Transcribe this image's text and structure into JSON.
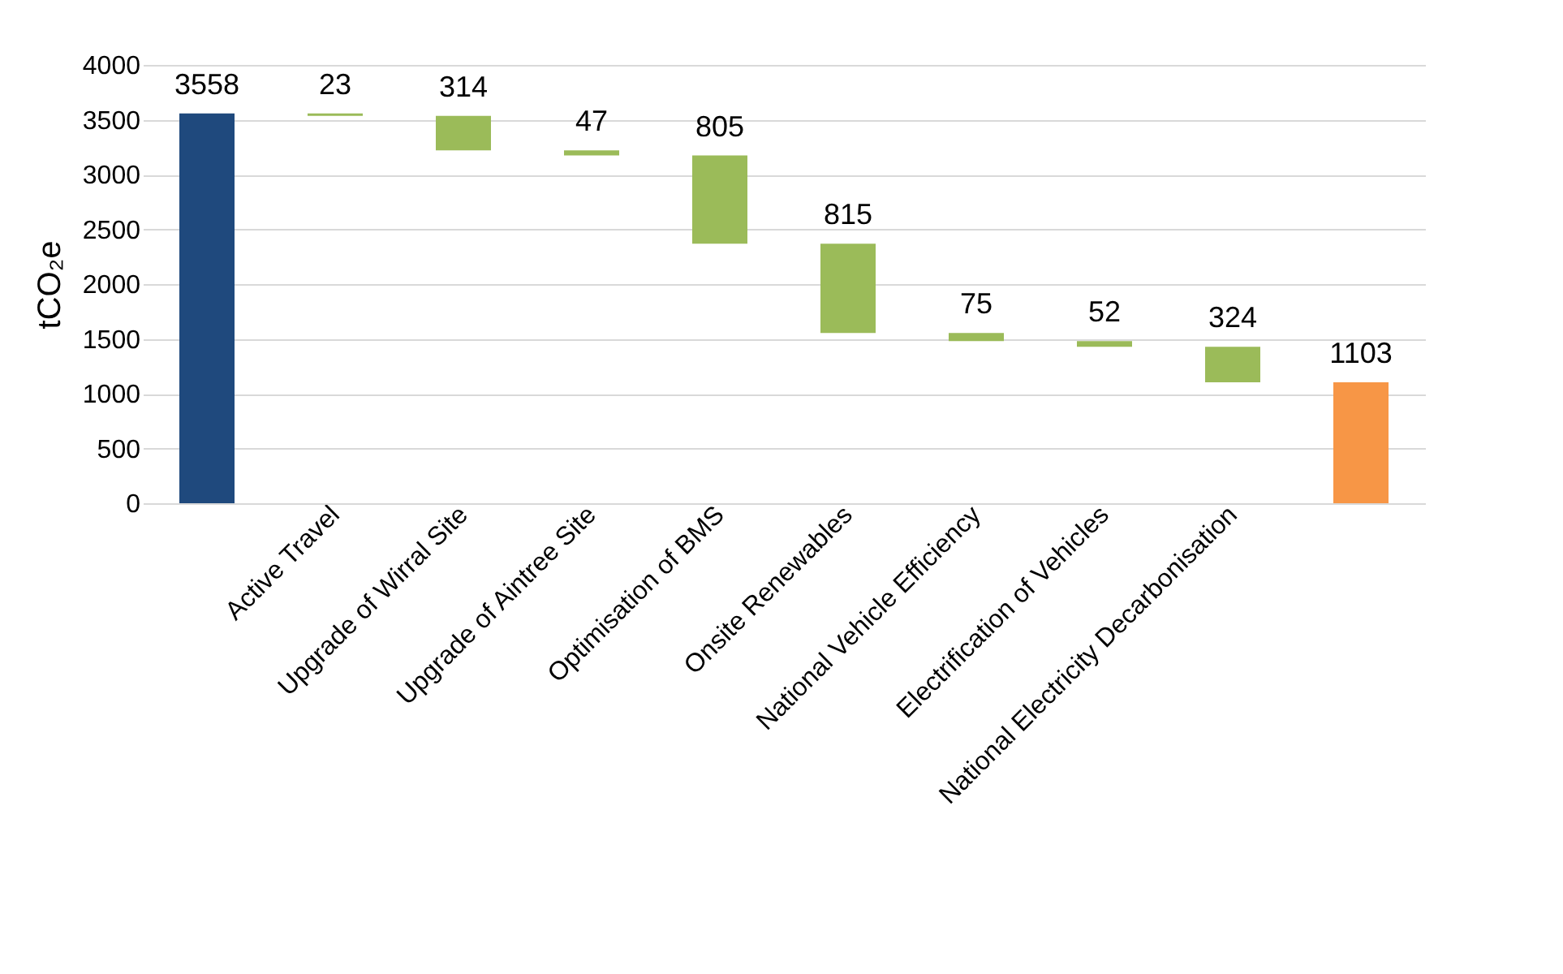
{
  "chart_data": {
    "type": "bar",
    "ylabel": "tCO₂e",
    "categories": [
      null,
      "Active Travel",
      "Upgrade of Wirral Site",
      "Upgrade of Aintree Site",
      "Optimisation of BMS",
      "Onsite Renewables",
      "National Vehicle Efficiency",
      "Electrification of Vehicles",
      "National Electricity Decarbonisation",
      null
    ],
    "values": [
      3558,
      23,
      314,
      47,
      805,
      815,
      75,
      52,
      324,
      1103
    ],
    "base": [
      0,
      3535,
      3221,
      3174,
      2369,
      1554,
      1479,
      1427,
      1103,
      0
    ],
    "colors": [
      "#1f497d",
      "#9bbb59",
      "#9bbb59",
      "#9bbb59",
      "#9bbb59",
      "#9bbb59",
      "#9bbb59",
      "#9bbb59",
      "#9bbb59",
      "#f79646"
    ],
    "ylim": [
      0,
      4000
    ],
    "yticks": [
      0,
      500,
      1000,
      1500,
      2000,
      2500,
      3000,
      3500,
      4000
    ],
    "grid": "y",
    "data_labels": true
  }
}
